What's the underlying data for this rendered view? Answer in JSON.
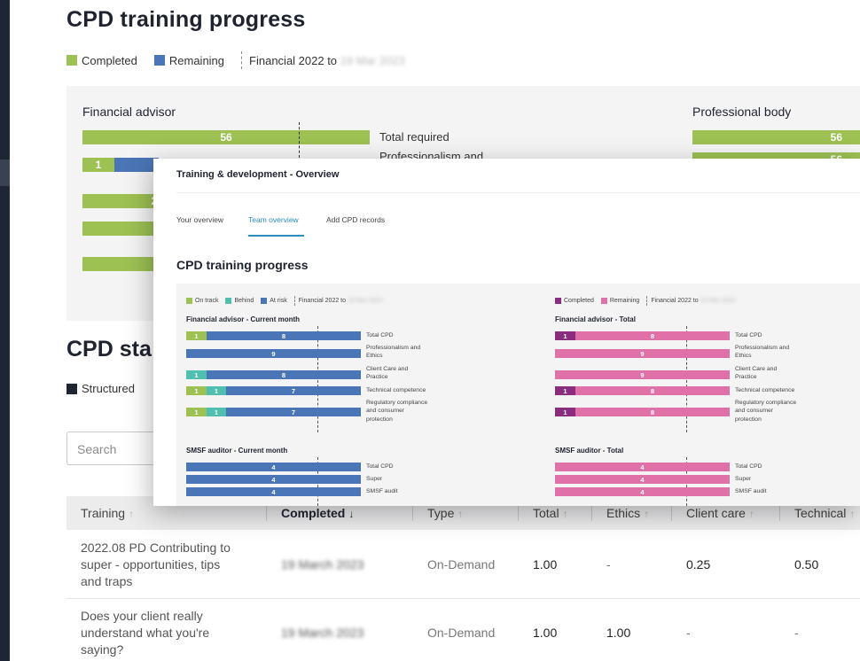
{
  "colors": {
    "completed_green": "#9dc153",
    "remaining_blue": "#4a75b6",
    "behind_teal": "#4fbfb0",
    "navy": "#1f2533",
    "magenta_completed": "#8b2d7e",
    "pink_remaining": "#e070a8",
    "tab_active": "#2a8cc1"
  },
  "background": {
    "title": "CPD training progress",
    "legend": {
      "completed": "Completed",
      "remaining": "Remaining",
      "period_prefix": "Financial 2022 to",
      "period_end": "19 Mar 2023"
    },
    "panel": {
      "financial_advisor": "Financial advisor",
      "professional_body": "Professional body",
      "row1_value": "56",
      "row1_label": "Total required",
      "row2_value": "1",
      "row2_label": "Professionalism and",
      "row3_value": "2",
      "pb_row1_value": "56",
      "pb_row2_value": "56"
    },
    "section2_title": "CPD sta",
    "structured_label": "Structured",
    "search_placeholder": "Search",
    "table": {
      "headers": [
        "Training",
        "Completed",
        "Type",
        "Total",
        "Ethics",
        "Client care",
        "Technical"
      ],
      "rows": [
        {
          "training": [
            "2022.08 PD Contributing to",
            "super - opportunities, tips",
            "and traps"
          ],
          "completed": "19 March 2023",
          "type": "On-Demand",
          "total": "1.00",
          "ethics": "-",
          "client_care": "0.25",
          "technical": "0.50"
        },
        {
          "training": [
            "Does your client really",
            "understand what you're",
            "saying?"
          ],
          "completed": "19 March 2023",
          "type": "On-Demand",
          "total": "1.00",
          "ethics": "1.00",
          "client_care": "-",
          "technical": "-"
        }
      ]
    }
  },
  "overlay": {
    "window_title": "Training & development - Overview",
    "tabs": [
      "Your overview",
      "Team overview",
      "Add CPD records"
    ],
    "active_tab_index": 1,
    "heading": "CPD training progress",
    "legend_left": {
      "on_track": "On track",
      "behind": "Behind",
      "at_risk": "At risk",
      "period_prefix": "Financial 2022 to",
      "period_end": "19 Mar 2023"
    },
    "legend_right": {
      "completed": "Completed",
      "remaining": "Remaining",
      "period_prefix": "Financial 2022 to",
      "period_end": "19 Mar 2023"
    },
    "fa_current_month": {
      "title": "Financial advisor - Current month",
      "rows": [
        {
          "done": "1",
          "done_status": "on_track",
          "behind": "",
          "remaining": "8",
          "label": [
            "Total CPD"
          ]
        },
        {
          "done": "",
          "done_status": "",
          "behind": "",
          "remaining": "9",
          "label": [
            "Professionalism and",
            "Ethics"
          ]
        },
        {
          "done": "1",
          "done_status": "behind",
          "behind": "",
          "remaining": "8",
          "label": [
            "Client Care and",
            "Practice"
          ]
        },
        {
          "done": "1",
          "done_status": "on_track",
          "behind": "1",
          "remaining": "7",
          "label": [
            "Technical competence"
          ]
        },
        {
          "done": "1",
          "done_status": "on_track",
          "behind": "1",
          "remaining": "7",
          "label": [
            "Regulatory compliance",
            "and consumer",
            "protection"
          ]
        }
      ]
    },
    "fa_total": {
      "title": "Financial advisor - Total",
      "rows": [
        {
          "done": "1",
          "remaining": "8",
          "label": [
            "Total CPD"
          ]
        },
        {
          "done": "",
          "remaining": "9",
          "label": [
            "Professionalism and",
            "Ethics"
          ]
        },
        {
          "done": "",
          "remaining": "9",
          "label": [
            "Client Care and",
            "Practice"
          ]
        },
        {
          "done": "1",
          "remaining": "8",
          "label": [
            "Technical competence"
          ]
        },
        {
          "done": "1",
          "remaining": "8",
          "label": [
            "Regulatory compliance",
            "and consumer",
            "protection"
          ]
        }
      ]
    },
    "smsf_current_month": {
      "title": "SMSF auditor - Current month",
      "rows": [
        {
          "remaining": "4",
          "label": "Total CPD"
        },
        {
          "remaining": "4",
          "label": "Super"
        },
        {
          "remaining": "4",
          "label": "SMSF audit"
        }
      ]
    },
    "smsf_total": {
      "title": "SMSF auditor - Total",
      "rows": [
        {
          "remaining": "4",
          "label": "Total CPD"
        },
        {
          "remaining": "4",
          "label": "Super"
        },
        {
          "remaining": "4",
          "label": "SMSF audit"
        }
      ]
    }
  }
}
